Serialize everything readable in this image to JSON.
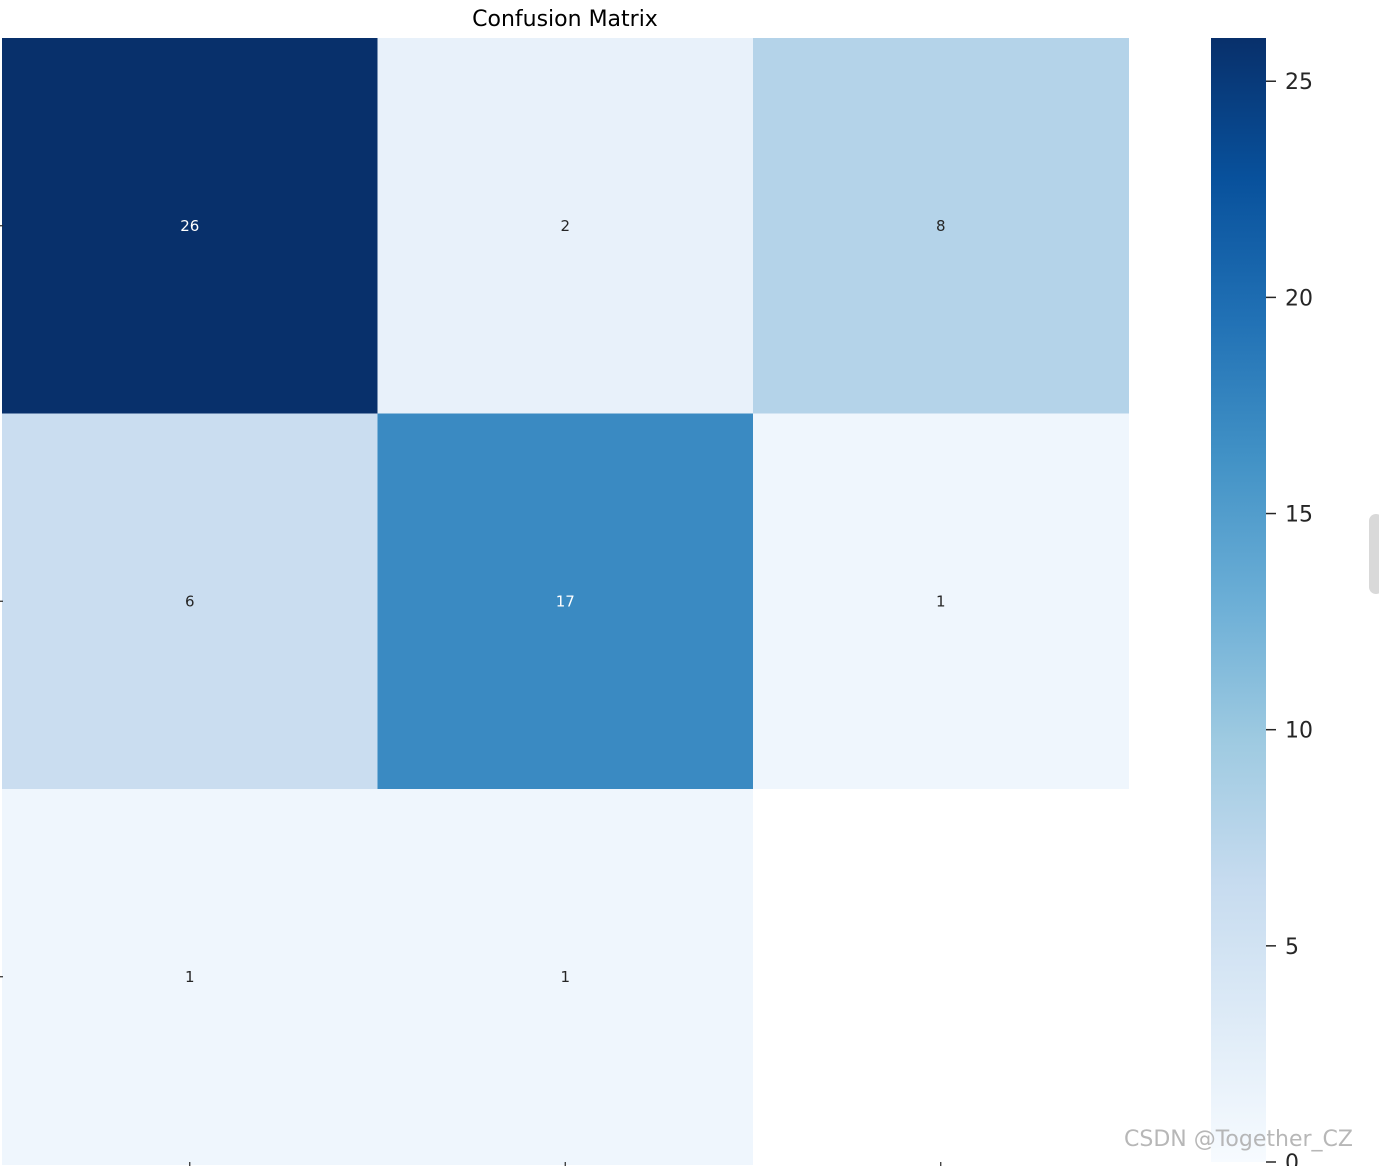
{
  "chart_data": {
    "type": "heatmap",
    "title": "Confusion Matrix",
    "xlabel": "",
    "ylabel": "",
    "rows": 3,
    "cols": 3,
    "values": [
      [
        26,
        2,
        8
      ],
      [
        6,
        17,
        1
      ],
      [
        1,
        1,
        0
      ]
    ],
    "cell_labels": [
      [
        "26",
        "2",
        "8"
      ],
      [
        "6",
        "17",
        "1"
      ],
      [
        "1",
        "1",
        ""
      ]
    ],
    "colormap": "Blues",
    "vmin": 0,
    "vmax": 26,
    "colorbar_ticks": [
      0,
      5,
      10,
      15,
      20,
      25
    ],
    "colorbar_tick_labels": [
      "0",
      "5",
      "10",
      "15",
      "20",
      "25"
    ],
    "grid": false,
    "colorbar_position": "right"
  },
  "watermark": {
    "text": "CSDN @Together_CZ"
  },
  "colors": {
    "blues_stops": [
      "#f7fbff",
      "#deebf7",
      "#c6dbef",
      "#9ecae1",
      "#6baed6",
      "#4292c6",
      "#2171b5",
      "#08519c",
      "#08306b"
    ],
    "text_dark": "#262626",
    "text_light": "#ffffff",
    "tick_color": "#262626",
    "empty_cell": "#ffffff"
  }
}
